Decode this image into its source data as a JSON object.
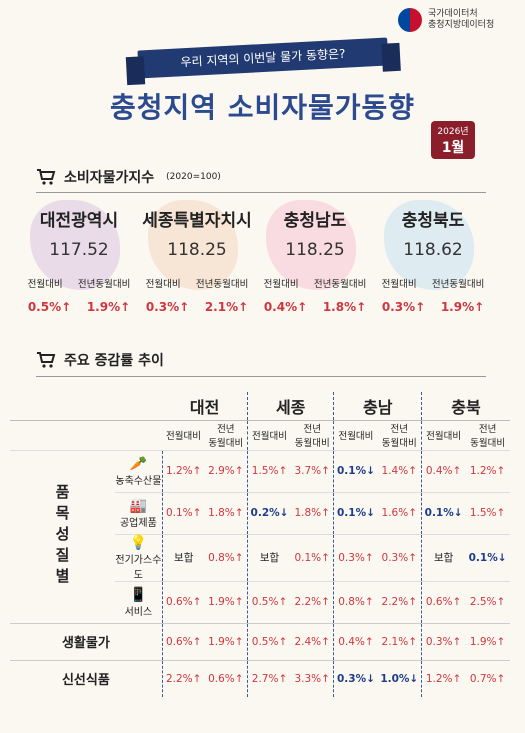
{
  "header": {
    "org_line1": "국가데이터처",
    "org_line2": "충청지방데이터청",
    "ribbon": "우리 지역의 이번달 물가 동향은?",
    "title": "충청지역 소비자물가동향",
    "year": "2026년",
    "month": "1월"
  },
  "cpi": {
    "title": "소비자물가지수",
    "base": "(2020=100)",
    "regions": [
      {
        "name": "대전광역시",
        "value": "117.52",
        "lbl_mom": "전월대비",
        "lbl_yoy": "전년동월대비",
        "mom": "0.5%↑",
        "yoy": "1.9%↑",
        "color": "#c9a7d6"
      },
      {
        "name": "세종특별자치시",
        "value": "118.25",
        "lbl_mom": "전월대비",
        "lbl_yoy": "전년동월대비",
        "mom": "0.3%↑",
        "yoy": "2.1%↑",
        "color": "#f2c6a0"
      },
      {
        "name": "충청남도",
        "value": "118.25",
        "lbl_mom": "전월대비",
        "lbl_yoy": "전년동월대비",
        "mom": "0.4%↑",
        "yoy": "1.8%↑",
        "color": "#f3a9c3"
      },
      {
        "name": "충청북도",
        "value": "118.62",
        "lbl_mom": "전월대비",
        "lbl_yoy": "전년동월대비",
        "mom": "0.3%↑",
        "yoy": "1.9%↑",
        "color": "#a9d3f0"
      }
    ]
  },
  "trend": {
    "title": "주요 증감률 추이",
    "regions": [
      "대전",
      "세종",
      "충남",
      "충북"
    ],
    "col_mom": "전월대비",
    "col_yoy_1": "전년",
    "col_yoy_2": "동월대비",
    "category_group": "품목성질별",
    "rows": [
      {
        "label": "농축수산물",
        "cells": [
          "1.2%↑",
          "2.9%↑",
          "1.5%↑",
          "3.7%↑",
          "0.1%↓",
          "1.4%↑",
          "0.4%↑",
          "1.2%↑"
        ]
      },
      {
        "label": "공업제품",
        "cells": [
          "0.1%↑",
          "1.8%↑",
          "0.2%↓",
          "1.8%↑",
          "0.1%↓",
          "1.6%↑",
          "0.1%↓",
          "1.5%↑"
        ]
      },
      {
        "label": "전기가스수도",
        "cells": [
          "보합",
          "0.8%↑",
          "보합",
          "0.1%↑",
          "0.3%↑",
          "0.3%↑",
          "보합",
          "0.1%↓"
        ]
      },
      {
        "label": "서비스",
        "cells": [
          "0.6%↑",
          "1.9%↑",
          "0.5%↑",
          "2.2%↑",
          "0.8%↑",
          "2.2%↑",
          "0.6%↑",
          "2.5%↑"
        ]
      }
    ],
    "summary_rows": [
      {
        "label": "생활물가",
        "cells": [
          "0.6%↑",
          "1.9%↑",
          "0.5%↑",
          "2.4%↑",
          "0.4%↑",
          "2.1%↑",
          "0.3%↑",
          "1.9%↑"
        ]
      },
      {
        "label": "신선식품",
        "cells": [
          "2.2%↑",
          "0.6%↑",
          "2.7%↑",
          "3.3%↑",
          "0.3%↓",
          "1.0%↓",
          "1.2%↑",
          "0.7%↑"
        ]
      }
    ]
  },
  "colors": {
    "up": "#d0363f",
    "down": "#1d3c8a",
    "title": "#2b4a8f",
    "badge": "#8b1e2b"
  }
}
